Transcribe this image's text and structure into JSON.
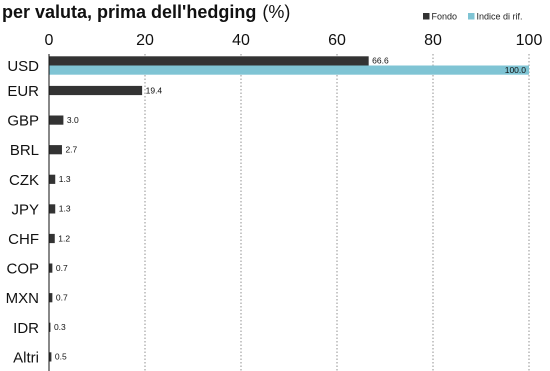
{
  "chart_data": {
    "type": "bar",
    "orientation": "horizontal",
    "title": "per valuta, prima dell'hedging",
    "title_unit": "(%)",
    "categories": [
      "USD",
      "EUR",
      "GBP",
      "BRL",
      "CZK",
      "JPY",
      "CHF",
      "COP",
      "MXN",
      "IDR",
      "Altri"
    ],
    "series": [
      {
        "name": "Fondo",
        "color": "#333333",
        "values": [
          66.6,
          19.4,
          3.0,
          2.7,
          1.3,
          1.3,
          1.2,
          0.7,
          0.7,
          0.3,
          0.5
        ],
        "labels": [
          "66.6",
          "19.4",
          "3.0",
          "2.7",
          "1.3",
          "1.3",
          "1.2",
          "0.7",
          "0.7",
          "0.3",
          "0.5"
        ]
      },
      {
        "name": "Indice di rif.",
        "color": "#7fc4d4",
        "values": [
          100.0,
          null,
          null,
          null,
          null,
          null,
          null,
          null,
          null,
          null,
          null
        ],
        "labels": [
          "100.0",
          null,
          null,
          null,
          null,
          null,
          null,
          null,
          null,
          null,
          null
        ]
      }
    ],
    "xlim": [
      0,
      100
    ],
    "xticks": [
      "0",
      "20",
      "40",
      "60",
      "80",
      "100"
    ],
    "xlabel": "",
    "ylabel": "",
    "grid": true,
    "legend_position": "top-right",
    "axis_position": "top"
  }
}
